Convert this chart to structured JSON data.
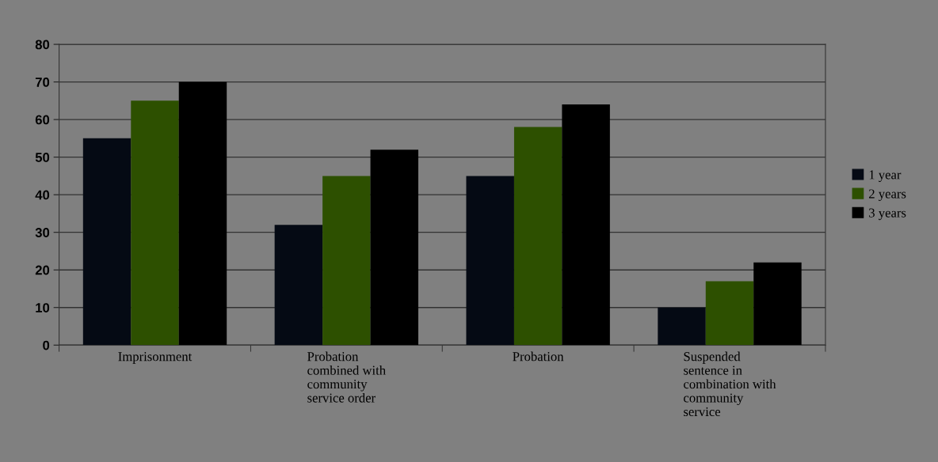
{
  "chart_data": {
    "type": "bar",
    "categories": [
      "Imprisonment",
      "Probation\ncombined with\ncommunity\nservice order",
      "Probation",
      "Suspended\nsentence in\ncombination with\ncommunity\nservice"
    ],
    "series": [
      {
        "name": "1 year",
        "color": "#050a14",
        "values": [
          55,
          32,
          45,
          10
        ]
      },
      {
        "name": "2 years",
        "color": "#2d5000",
        "values": [
          65,
          45,
          58,
          17
        ]
      },
      {
        "name": "3 years",
        "color": "#000000",
        "values": [
          70,
          52,
          64,
          22
        ]
      }
    ],
    "ylim": [
      0,
      80
    ],
    "yticks": [
      0,
      10,
      20,
      30,
      40,
      50,
      60,
      70,
      80
    ],
    "grid": "y",
    "legend": "right"
  }
}
